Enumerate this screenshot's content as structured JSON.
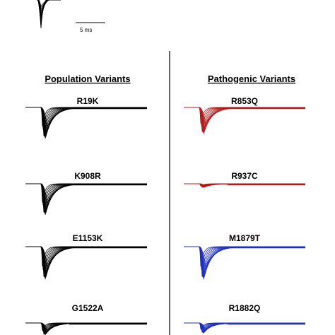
{
  "figure": {
    "scale_bar_label": "5 ms",
    "columns": [
      {
        "heading": "Population Variants",
        "panels": [
          {
            "label": "R19K",
            "color": "#000000",
            "relative_amplitude": 1.0
          },
          {
            "label": "K908R",
            "color": "#000000",
            "relative_amplitude": 1.0
          },
          {
            "label": "E1153K",
            "color": "#000000",
            "relative_amplitude": 1.05
          },
          {
            "label": "G1522A",
            "color": "#000000",
            "relative_amplitude": 1.0
          }
        ]
      },
      {
        "heading": "Pathogenic Variants",
        "panels": [
          {
            "label": "R853Q",
            "color": "#b01c1c",
            "relative_amplitude": 0.85
          },
          {
            "label": "R937C",
            "color": "#b01c1c",
            "relative_amplitude": 0.12
          },
          {
            "label": "M1879T",
            "color": "#1f2fbf",
            "relative_amplitude": 1.05
          },
          {
            "label": "R1882Q",
            "color": "#1f2fbf",
            "relative_amplitude": 0.85
          }
        ]
      }
    ]
  }
}
